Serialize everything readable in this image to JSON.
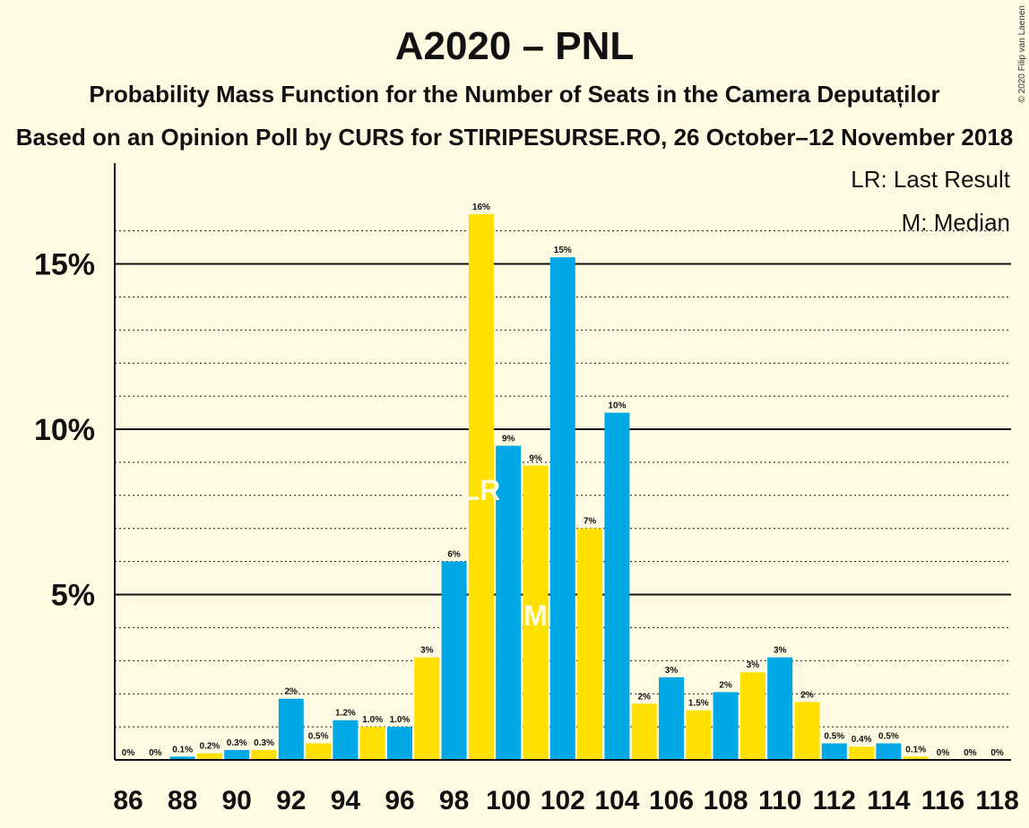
{
  "header": {
    "title": "A2020 – PNL",
    "subtitle": "Probability Mass Function for the Number of Seats in the Camera Deputaților",
    "source": "Based on an Opinion Poll by CURS for STIRIPESURSE.RO, 26 October–12 November 2018"
  },
  "legend": {
    "lr": "LR: Last Result",
    "median": "M: Median"
  },
  "copyright": "© 2020 Filip van Laenen",
  "markers": {
    "lr_label": "LR",
    "median_label": "M",
    "lr_seat": 99,
    "median_seat": 101
  },
  "colors": {
    "background": "#FFFBE3",
    "blue": "#00A8E6",
    "yellow": "#FFE000",
    "text": "#111111"
  },
  "chart_data": {
    "type": "bar",
    "xlabel": "",
    "ylabel": "",
    "ylim": [
      0,
      18
    ],
    "y_ticks": [
      5,
      10,
      15
    ],
    "y_tick_labels": [
      "5%",
      "10%",
      "15%"
    ],
    "x_tick_labels": [
      "86",
      "88",
      "90",
      "92",
      "94",
      "96",
      "98",
      "100",
      "102",
      "104",
      "106",
      "108",
      "110",
      "112",
      "114",
      "116",
      "118"
    ],
    "legend_position": "top-right",
    "bars": [
      {
        "seat": 86,
        "value": 0,
        "label": "0%"
      },
      {
        "seat": 87,
        "value": 0,
        "label": "0%"
      },
      {
        "seat": 88,
        "value": 0.1,
        "label": "0.1%"
      },
      {
        "seat": 89,
        "value": 0.2,
        "label": "0.2%"
      },
      {
        "seat": 90,
        "value": 0.3,
        "label": "0.3%"
      },
      {
        "seat": 91,
        "value": 0.3,
        "label": "0.3%"
      },
      {
        "seat": 92,
        "value": 1.85,
        "label": "2%"
      },
      {
        "seat": 93,
        "value": 0.5,
        "label": "0.5%"
      },
      {
        "seat": 94,
        "value": 1.2,
        "label": "1.2%"
      },
      {
        "seat": 95,
        "value": 1.0,
        "label": "1.0%"
      },
      {
        "seat": 96,
        "value": 1.0,
        "label": "1.0%"
      },
      {
        "seat": 97,
        "value": 3.1,
        "label": "3%"
      },
      {
        "seat": 98,
        "value": 6.0,
        "label": "6%"
      },
      {
        "seat": 99,
        "value": 16.5,
        "label": "16%"
      },
      {
        "seat": 100,
        "value": 9.5,
        "label": "9%"
      },
      {
        "seat": 101,
        "value": 8.9,
        "label": "9%"
      },
      {
        "seat": 102,
        "value": 15.2,
        "label": "15%"
      },
      {
        "seat": 103,
        "value": 7.0,
        "label": "7%"
      },
      {
        "seat": 104,
        "value": 10.5,
        "label": "10%"
      },
      {
        "seat": 105,
        "value": 1.7,
        "label": "2%"
      },
      {
        "seat": 106,
        "value": 2.5,
        "label": "3%"
      },
      {
        "seat": 107,
        "value": 1.5,
        "label": "1.5%"
      },
      {
        "seat": 108,
        "value": 2.05,
        "label": "2%"
      },
      {
        "seat": 109,
        "value": 2.65,
        "label": "3%"
      },
      {
        "seat": 110,
        "value": 3.1,
        "label": "3%"
      },
      {
        "seat": 111,
        "value": 1.75,
        "label": "2%"
      },
      {
        "seat": 112,
        "value": 0.5,
        "label": "0.5%"
      },
      {
        "seat": 113,
        "value": 0.4,
        "label": "0.4%"
      },
      {
        "seat": 114,
        "value": 0.5,
        "label": "0.5%"
      },
      {
        "seat": 115,
        "value": 0.1,
        "label": "0.1%"
      },
      {
        "seat": 116,
        "value": 0,
        "label": "0%"
      },
      {
        "seat": 117,
        "value": 0,
        "label": "0%"
      },
      {
        "seat": 118,
        "value": 0,
        "label": "0%"
      }
    ]
  }
}
